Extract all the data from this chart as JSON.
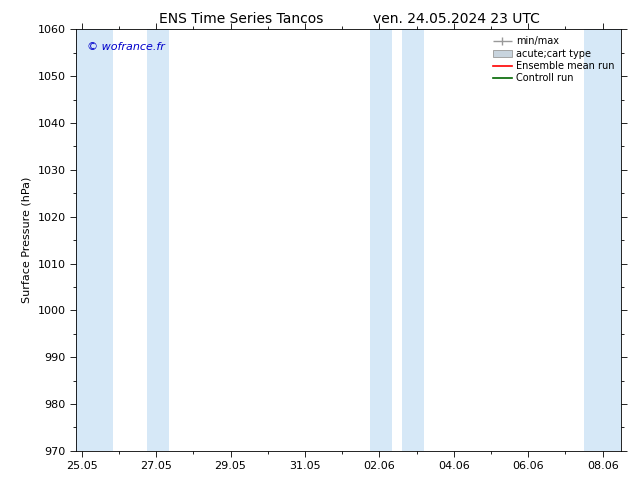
{
  "title_left": "ENS Time Series Tancos",
  "title_right": "ven. 24.05.2024 23 UTC",
  "ylabel": "Surface Pressure (hPa)",
  "ylim": [
    970,
    1060
  ],
  "ytick_interval": 10,
  "xtick_labels": [
    "25.05",
    "27.05",
    "29.05",
    "31.05",
    "02.06",
    "04.06",
    "06.06",
    "08.06"
  ],
  "xtick_positions": [
    0,
    2,
    4,
    6,
    8,
    10,
    12,
    14
  ],
  "xlim_start": -0.15,
  "xlim_end": 14.5,
  "watermark": "© wofrance.fr",
  "background_color": "#ffffff",
  "plot_bg_color": "#ffffff",
  "band_color": "#d6e8f7",
  "bands": [
    [
      -0.15,
      0.85
    ],
    [
      1.75,
      2.35
    ],
    [
      7.75,
      8.35
    ],
    [
      8.6,
      9.2
    ],
    [
      13.5,
      14.5
    ]
  ],
  "title_fontsize": 10,
  "axis_fontsize": 8,
  "tick_fontsize": 8,
  "watermark_color": "#0000cc",
  "watermark_fontsize": 8,
  "legend_fontsize": 7,
  "minmax_color": "#999999",
  "rect_facecolor": "#c8d4de",
  "rect_edgecolor": "#999999",
  "ensemble_color": "#ff0000",
  "control_color": "#006600"
}
